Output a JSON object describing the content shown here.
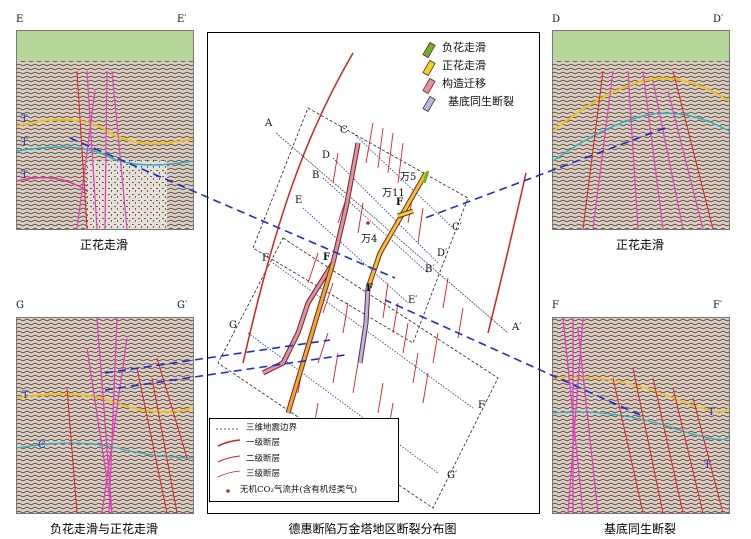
{
  "panels": {
    "ee": {
      "left": "E",
      "right": "E′",
      "caption": "正花走滑",
      "t1": "T",
      "t2": "T",
      "t3": "T"
    },
    "dd": {
      "left": "D",
      "right": "D′",
      "caption": "正花走滑"
    },
    "gg": {
      "left": "G",
      "right": "G′",
      "caption": "负花走滑与正花走滑",
      "t1": "T",
      "t2": "C"
    },
    "ff": {
      "left": "F",
      "right": "F′",
      "caption": "基底同生断裂",
      "t1": "T",
      "t2": "T"
    }
  },
  "map": {
    "caption": "德惠断陷万金塔地区断裂分布图",
    "legend_top": [
      {
        "label": "负花走滑",
        "color": "#6fb02a"
      },
      {
        "label": "正花走滑",
        "color": "#f2d21a"
      },
      {
        "label": "构造迁移",
        "color": "#e58fa0"
      },
      {
        "label": "基底同生断裂",
        "color": "#b7b6e8"
      }
    ],
    "legend_bottom": [
      {
        "label": "三维地震边界"
      },
      {
        "label": "一级断层"
      },
      {
        "label": "二级断层"
      },
      {
        "label": "三级断层"
      },
      {
        "label": "无机CO₂气流井(含有机烃类气)"
      }
    ],
    "wells": {
      "w4": "万4",
      "w5": "万5",
      "w11": "万11"
    },
    "line_labels": {
      "A": "A",
      "A2": "A′",
      "B": "B",
      "B2": "B′",
      "C": "C",
      "C2": "C′",
      "D": "D",
      "D2": "D′",
      "E": "E",
      "E2": "E′",
      "F": "F",
      "F2": "F′",
      "G": "G",
      "G2": "G′"
    },
    "fault_labels": {
      "f1": "F",
      "f2": "F",
      "f3": "F"
    }
  },
  "colors": {
    "dashed_link": "#1d2fc8",
    "fault": "#d42121",
    "line": "#1d2fc8"
  }
}
